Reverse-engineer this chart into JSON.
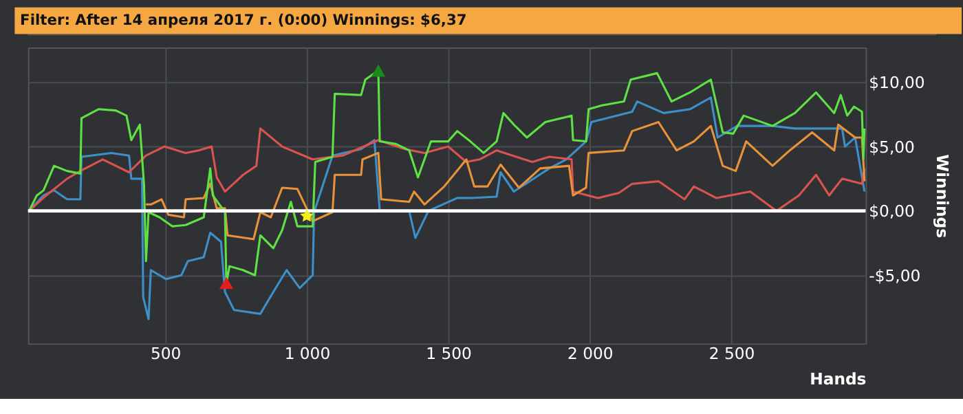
{
  "chart_data": {
    "type": "line",
    "title": "Filter: After 14 апреля 2017 г. (0:00) Winnings: $6,37",
    "xlabel": "Hands",
    "ylabel": "Winnings",
    "xlim": [
      15,
      2975
    ],
    "ylim": [
      -10.3,
      12.7
    ],
    "xticks": [
      500,
      {
        "value": 1000,
        "label": "1 000"
      },
      {
        "value": 1500,
        "label": "1 500"
      },
      {
        "value": 2000,
        "label": "2 000"
      },
      {
        "value": 2500,
        "label": "2 500"
      }
    ],
    "yticks": [
      {
        "value": -5,
        "label": "-$5,00"
      },
      {
        "value": 0,
        "label": "$0,00"
      },
      {
        "value": 5,
        "label": "$5,00"
      },
      {
        "value": 10,
        "label": "$10,00"
      }
    ],
    "grid": true,
    "line_style": "solid",
    "marker": "none",
    "ref_lines": [
      {
        "axis": "y",
        "value": 0,
        "color": "#ffffff"
      }
    ],
    "series": [
      {
        "color": "#3d8fc8",
        "x": [
          19,
          70,
          107,
          153,
          200,
          204,
          310,
          372,
          380,
          418,
          422,
          441,
          449,
          503,
          557,
          580,
          636,
          659,
          697,
          711,
          743,
          836,
          882,
          929,
          975,
          1021,
          1026,
          1091,
          1192,
          1239,
          1258,
          1362,
          1384,
          1430,
          1532,
          1578,
          1671,
          1685,
          1732,
          1857,
          1917,
          1987,
          2006,
          2150,
          2168,
          2261,
          2354,
          2428,
          2452,
          2521,
          2646,
          2725,
          2892,
          2902,
          2938,
          2971
        ],
        "values": [
          0,
          1.2,
          1.6,
          0.9,
          0.9,
          4.2,
          4.5,
          4.3,
          2.5,
          2.5,
          -6.7,
          -8.4,
          -4.6,
          -5.3,
          -5.0,
          -3.9,
          -3.6,
          -1.7,
          -2.4,
          -6.3,
          -7.7,
          -8.0,
          -6.3,
          -4.6,
          -6.0,
          -5.0,
          -0.1,
          4.3,
          4.8,
          5.5,
          0,
          0,
          -2.1,
          0,
          1.0,
          1.0,
          1.1,
          3.0,
          1.5,
          3.3,
          4.0,
          5.4,
          6.9,
          7.7,
          8.5,
          7.6,
          7.9,
          8.8,
          5.7,
          6.6,
          6.6,
          6.4,
          6.4,
          5.0,
          5.7,
          1.5
        ]
      },
      {
        "color": "#d9534f",
        "x": [
          19,
          79,
          153,
          200,
          279,
          372,
          432,
          497,
          572,
          618,
          664,
          682,
          711,
          775,
          822,
          836,
          913,
          1021,
          1128,
          1253,
          1346,
          1416,
          1500,
          1564,
          1611,
          1671,
          1797,
          1857,
          1936,
          1941,
          2029,
          2103,
          2150,
          2243,
          2335,
          2368,
          2447,
          2567,
          2660,
          2739,
          2800,
          2846,
          2892,
          2962,
          2971
        ],
        "values": [
          0,
          1.2,
          2.5,
          3.1,
          4.0,
          3.0,
          4.3,
          5.0,
          4.5,
          4.7,
          5.0,
          2.6,
          1.5,
          2.8,
          3.5,
          6.4,
          5.0,
          4.0,
          4.3,
          5.5,
          4.8,
          4.5,
          5.0,
          3.8,
          4.0,
          4.7,
          3.8,
          4.2,
          4.0,
          1.5,
          1.0,
          1.4,
          2.1,
          2.3,
          0.9,
          1.9,
          1.0,
          1.5,
          0,
          1.2,
          2.8,
          1.2,
          2.5,
          2.1,
          3.3
        ]
      },
      {
        "color": "#e8923a",
        "x": [
          432,
          449,
          487,
          511,
          566,
          572,
          636,
          659,
          682,
          711,
          720,
          812,
          836,
          873,
          913,
          967,
          1021,
          1091,
          1099,
          1192,
          1197,
          1253,
          1263,
          1362,
          1379,
          1416,
          1486,
          1564,
          1592,
          1639,
          1685,
          1750,
          1825,
          1927,
          1941,
          1987,
          1996,
          2121,
          2150,
          2243,
          2307,
          2368,
          2428,
          2470,
          2516,
          2553,
          2646,
          2707,
          2786,
          2864,
          2878,
          2938,
          2962,
          2971
        ],
        "values": [
          0.5,
          0.5,
          0.9,
          -0.3,
          -0.5,
          0.9,
          1.0,
          2.1,
          0.2,
          0.2,
          -1.9,
          -2.2,
          -0.1,
          -0.5,
          1.8,
          1.7,
          -0.8,
          -0.1,
          2.8,
          2.8,
          4.0,
          4.5,
          0.9,
          0.7,
          1.5,
          0.5,
          1.9,
          4.0,
          1.9,
          1.9,
          3.6,
          1.8,
          3.3,
          3.5,
          1.2,
          1.8,
          4.5,
          4.7,
          6.2,
          6.9,
          4.7,
          5.4,
          6.6,
          3.5,
          3.1,
          5.4,
          3.5,
          4.7,
          6.1,
          4.7,
          6.7,
          5.7,
          5.7,
          2.3
        ]
      },
      {
        "color": "#5fe045",
        "x": [
          19,
          46,
          70,
          107,
          153,
          200,
          204,
          264,
          325,
          363,
          380,
          410,
          425,
          432,
          441,
          480,
          525,
          572,
          636,
          659,
          668,
          711,
          716,
          727,
          775,
          817,
          836,
          882,
          913,
          944,
          967,
          1021,
          1030,
          1091,
          1099,
          1192,
          1207,
          1253,
          1258,
          1315,
          1362,
          1393,
          1439,
          1500,
          1532,
          1578,
          1625,
          1671,
          1695,
          1732,
          1778,
          1843,
          1936,
          1941,
          1987,
          1996,
          2043,
          2121,
          2145,
          2238,
          2289,
          2354,
          2428,
          2470,
          2507,
          2544,
          2646,
          2725,
          2800,
          2864,
          2887,
          2910,
          2934,
          2962,
          2967,
          2971
        ],
        "values": [
          0,
          1.2,
          1.6,
          3.5,
          3.1,
          2.9,
          7.2,
          7.9,
          7.8,
          7.4,
          5.5,
          6.7,
          2.0,
          -3.9,
          -0.1,
          -0.5,
          -1.2,
          -1.1,
          -0.5,
          3.3,
          1.2,
          -0.1,
          -5.6,
          -4.3,
          -4.6,
          -5.0,
          -1.9,
          -2.9,
          -1.5,
          0.7,
          -1.2,
          -1.2,
          3.8,
          4.2,
          9.1,
          9.0,
          10.2,
          10.9,
          5.4,
          5.2,
          4.7,
          2.6,
          5.4,
          5.4,
          6.2,
          5.4,
          4.5,
          5.4,
          7.6,
          6.7,
          5.7,
          6.9,
          7.4,
          5.5,
          5.4,
          7.9,
          8.2,
          8.5,
          10.2,
          10.7,
          8.5,
          9.2,
          10.2,
          6.1,
          6.0,
          7.4,
          6.6,
          7.6,
          9.2,
          7.6,
          9.0,
          7.4,
          8.1,
          7.7,
          4.0,
          6.4
        ]
      },
      {
        "type": "scatter",
        "marker": "triangle",
        "color": "#e02020",
        "x": [
          716
        ],
        "values": [
          -5.6
        ]
      },
      {
        "type": "scatter",
        "marker": "triangle",
        "color": "#1a8a1a",
        "x": [
          1253
        ],
        "values": [
          10.9
        ]
      },
      {
        "type": "scatter",
        "marker": "star",
        "color": "#f0f020",
        "x": [
          1000
        ],
        "values": [
          -0.4
        ]
      }
    ]
  }
}
